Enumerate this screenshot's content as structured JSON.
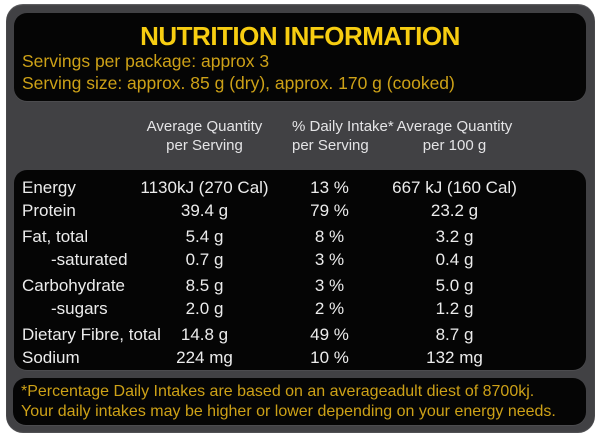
{
  "colors": {
    "panel_gray": "#414144",
    "box_black": "#050505",
    "title_yellow": "#f7cd11",
    "gold_text": "#cda117",
    "body_text": "#ececec",
    "header_text": "#e4e4e6"
  },
  "header": {
    "title": "NUTRITION INFORMATION",
    "servings_per_package": "Servings per package: approx 3",
    "serving_size": "Serving size: approx. 85 g (dry), approx. 170 g (cooked)"
  },
  "table": {
    "columns": [
      {
        "line1": "Average Quantity",
        "line2": "per Serving"
      },
      {
        "line1": "% Daily Intake*",
        "line2": "per Serving"
      },
      {
        "line1": "Average Quantity",
        "line2": "per 100 g"
      }
    ],
    "rows": [
      {
        "label": "Energy",
        "per_serving": "1130kJ (270 Cal)",
        "daily_intake": "13 %",
        "per_100g": "667 kJ (160 Cal)",
        "group_start": false,
        "indent": false
      },
      {
        "label": "Protein",
        "per_serving": "39.4 g",
        "daily_intake": "79 %",
        "per_100g": "23.2 g",
        "group_start": false,
        "indent": false
      },
      {
        "label": "Fat, total",
        "per_serving": "5.4 g",
        "daily_intake": "8 %",
        "per_100g": "3.2 g",
        "group_start": true,
        "indent": false
      },
      {
        "label": "-saturated",
        "per_serving": "0.7 g",
        "daily_intake": "3 %",
        "per_100g": "0.4 g",
        "group_start": false,
        "indent": true
      },
      {
        "label": "Carbohydrate",
        "per_serving": "8.5 g",
        "daily_intake": "3 %",
        "per_100g": "5.0 g",
        "group_start": true,
        "indent": false
      },
      {
        "label": "-sugars",
        "per_serving": "2.0 g",
        "daily_intake": "2 %",
        "per_100g": "1.2 g",
        "group_start": false,
        "indent": true
      },
      {
        "label": "Dietary Fibre, total",
        "per_serving": "14.8 g",
        "daily_intake": "49 %",
        "per_100g": "8.7 g",
        "group_start": true,
        "indent": false
      },
      {
        "label": "Sodium",
        "per_serving": "224 mg",
        "daily_intake": "10 %",
        "per_100g": "132 mg",
        "group_start": false,
        "indent": false
      }
    ]
  },
  "footnote": {
    "line1": "*Percentage Daily Intakes are based on an averageadult diest of 8700kj.",
    "line2": "Your daily intakes may be higher or lower depending on your energy needs."
  }
}
